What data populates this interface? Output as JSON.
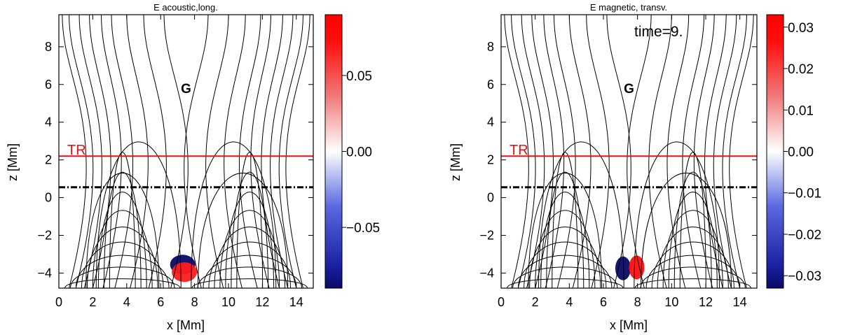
{
  "chart_data": [
    {
      "type": "heatmap",
      "title": "E acoustic,long.",
      "xlabel": "x [Mm]",
      "ylabel": "z [Mm]",
      "xlim": [
        0,
        15
      ],
      "ylim": [
        -4.8,
        9.7
      ],
      "x_ticks": [
        "0",
        "2",
        "4",
        "6",
        "8",
        "10",
        "12",
        "14"
      ],
      "y_ticks": [
        "-4",
        "-2",
        "0",
        "2",
        "4",
        "6",
        "8"
      ],
      "annotations": {
        "transition_region_label": "TR",
        "transition_region_z": 2.2,
        "dashdot_line_z": 0.55,
        "marker_label": "G",
        "marker_x": 7.5,
        "marker_z": 5.8
      },
      "colorbar": {
        "range": [
          -0.09,
          0.09
        ],
        "tick_values": [
          0.05,
          0.0,
          -0.05
        ],
        "tick_labels": [
          "0.05",
          "0.00",
          "-0.05"
        ]
      },
      "blobs": [
        {
          "x": 7.3,
          "z": -3.55,
          "value": -0.09
        },
        {
          "x": 7.4,
          "z": -3.95,
          "value": 0.08
        }
      ]
    },
    {
      "type": "heatmap",
      "title": "E magnetic, transv.",
      "time_label": "time=9.",
      "xlabel": "x [Mm]",
      "ylabel": "z [Mm]",
      "xlim": [
        0,
        15
      ],
      "ylim": [
        -4.8,
        9.7
      ],
      "x_ticks": [
        "0",
        "2",
        "4",
        "6",
        "8",
        "10",
        "12",
        "14"
      ],
      "y_ticks": [
        "-4",
        "-2",
        "0",
        "2",
        "4",
        "6",
        "8"
      ],
      "annotations": {
        "transition_region_label": "TR",
        "transition_region_z": 2.2,
        "dashdot_line_z": 0.55,
        "marker_label": "G",
        "marker_x": 7.5,
        "marker_z": 5.8
      },
      "colorbar": {
        "range": [
          -0.033,
          0.033
        ],
        "tick_values": [
          0.03,
          0.02,
          0.01,
          0.0,
          -0.01,
          -0.02,
          -0.03
        ],
        "tick_labels": [
          "0.03",
          "0.02",
          "0.01",
          "0.00",
          "-0.01",
          "-0.02",
          "-0.03"
        ]
      },
      "blobs": [
        {
          "x": 7.15,
          "z": -3.75,
          "value": -0.033
        },
        {
          "x": 7.95,
          "z": -3.7,
          "value": 0.031
        }
      ]
    }
  ]
}
